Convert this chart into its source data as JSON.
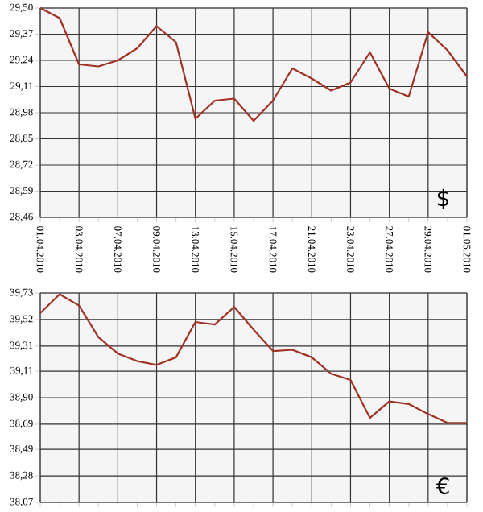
{
  "chart_data": [
    {
      "type": "line",
      "categories": [
        "01.04.2010",
        null,
        "03.04.2010",
        null,
        "07.04.2010",
        null,
        "09.04.2010",
        null,
        "13.04.2010",
        null,
        "15.04.2010",
        null,
        "17.04.2010",
        null,
        "21.04.2010",
        null,
        "23.04.2010",
        null,
        "27.04.2010",
        null,
        "29.04.2010",
        null,
        "01.05.2010"
      ],
      "series": [
        {
          "color": "#a03225",
          "values": [
            29.5,
            29.45,
            29.22,
            29.21,
            29.24,
            29.3,
            29.41,
            29.33,
            28.95,
            29.04,
            29.05,
            28.94,
            29.04,
            29.2,
            29.15,
            29.09,
            29.13,
            29.28,
            29.1,
            29.06,
            29.38,
            29.29,
            29.16
          ]
        }
      ],
      "ylim": [
        28.46,
        29.5
      ],
      "yticks": [
        {
          "value": 28.46,
          "label": "28,46"
        },
        {
          "value": 28.59,
          "label": "28,59"
        },
        {
          "value": 28.72,
          "label": "28,72"
        },
        {
          "value": 28.85,
          "label": "28,85"
        },
        {
          "value": 28.98,
          "label": "28,98"
        },
        {
          "value": 29.11,
          "label": "29,11"
        },
        {
          "value": 29.24,
          "label": "29,24"
        },
        {
          "value": 29.37,
          "label": "29,37"
        },
        {
          "value": 29.5,
          "label": "29,50"
        }
      ],
      "grid": true,
      "annotations": [
        "$"
      ]
    },
    {
      "type": "line",
      "categories": [
        "01.04.2010",
        null,
        "03.04.2010",
        null,
        "07.04.2010",
        null,
        "09.04.2010",
        null,
        "13.04.2010",
        null,
        "15.04.2010",
        null,
        "17.04.2010",
        null,
        "21.04.2010",
        null,
        "23.04.2010",
        null,
        "27.04.2010",
        null,
        "29.04.2010",
        null,
        "01.05.2010"
      ],
      "series": [
        {
          "color": "#a03225",
          "values": [
            39.57,
            39.72,
            39.63,
            39.38,
            39.25,
            39.19,
            39.16,
            39.22,
            39.5,
            39.48,
            39.62,
            39.44,
            39.27,
            39.28,
            39.22,
            39.09,
            39.04,
            38.74,
            38.87,
            38.85,
            38.77,
            38.7,
            38.7
          ]
        }
      ],
      "ylim": [
        38.07,
        39.73
      ],
      "yticks": [
        {
          "value": 38.07,
          "label": "38,07"
        },
        {
          "value": 38.28,
          "label": "38,28"
        },
        {
          "value": 38.49,
          "label": "38,49"
        },
        {
          "value": 38.69,
          "label": "38,69"
        },
        {
          "value": 38.9,
          "label": "38,90"
        },
        {
          "value": 39.11,
          "label": "39,11"
        },
        {
          "value": 39.31,
          "label": "39,31"
        },
        {
          "value": 39.52,
          "label": "39,52"
        },
        {
          "value": 39.73,
          "label": "39,73"
        }
      ],
      "grid": true,
      "tick_labels": "y",
      "annotations": [
        "€"
      ]
    }
  ]
}
